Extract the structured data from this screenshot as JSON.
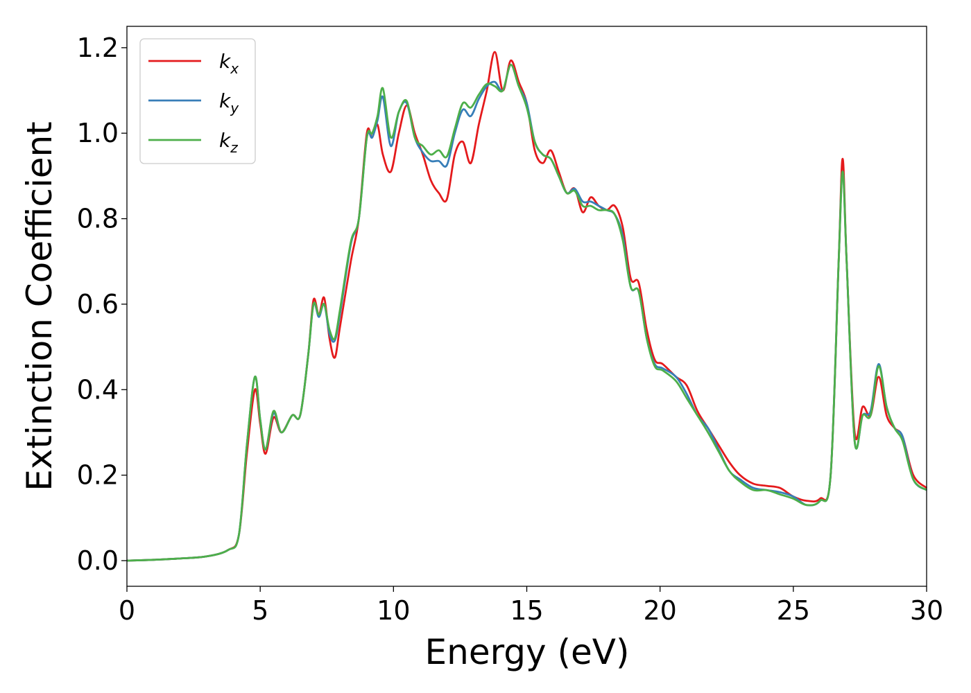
{
  "chart_data": {
    "type": "line",
    "title": "",
    "xlabel": "Energy (eV)",
    "ylabel": "Extinction Coefficient",
    "xlim": [
      0,
      30
    ],
    "ylim": [
      -0.06,
      1.25
    ],
    "xticks": [
      0,
      5,
      10,
      15,
      20,
      25,
      30
    ],
    "xtick_labels": [
      "0",
      "5",
      "10",
      "15",
      "20",
      "25",
      "30"
    ],
    "yticks": [
      0.0,
      0.2,
      0.4,
      0.6,
      0.8,
      1.0,
      1.2
    ],
    "ytick_labels": [
      "0.0",
      "0.2",
      "0.4",
      "0.6",
      "0.8",
      "1.0",
      "1.2"
    ],
    "grid": false,
    "legend_position": "top-left",
    "series": [
      {
        "name": "k_x",
        "sub": "x",
        "color": "#e41a1c",
        "points": [
          [
            0,
            0.0
          ],
          [
            1,
            0.002
          ],
          [
            2,
            0.005
          ],
          [
            3,
            0.01
          ],
          [
            3.8,
            0.025
          ],
          [
            4.2,
            0.06
          ],
          [
            4.5,
            0.25
          ],
          [
            4.8,
            0.4
          ],
          [
            5.0,
            0.32
          ],
          [
            5.2,
            0.25
          ],
          [
            5.5,
            0.335
          ],
          [
            5.8,
            0.3
          ],
          [
            6.2,
            0.34
          ],
          [
            6.5,
            0.34
          ],
          [
            6.8,
            0.48
          ],
          [
            7.0,
            0.61
          ],
          [
            7.2,
            0.575
          ],
          [
            7.4,
            0.615
          ],
          [
            7.6,
            0.52
          ],
          [
            7.8,
            0.475
          ],
          [
            8.0,
            0.55
          ],
          [
            8.4,
            0.7
          ],
          [
            8.7,
            0.8
          ],
          [
            9.0,
            1.0
          ],
          [
            9.2,
            0.99
          ],
          [
            9.4,
            1.02
          ],
          [
            9.6,
            0.95
          ],
          [
            9.9,
            0.91
          ],
          [
            10.2,
            1.0
          ],
          [
            10.5,
            1.065
          ],
          [
            10.8,
            1.0
          ],
          [
            11.1,
            0.95
          ],
          [
            11.4,
            0.89
          ],
          [
            11.7,
            0.86
          ],
          [
            12.0,
            0.845
          ],
          [
            12.3,
            0.95
          ],
          [
            12.6,
            0.98
          ],
          [
            12.9,
            0.93
          ],
          [
            13.2,
            1.02
          ],
          [
            13.5,
            1.1
          ],
          [
            13.8,
            1.19
          ],
          [
            14.1,
            1.1
          ],
          [
            14.4,
            1.17
          ],
          [
            14.7,
            1.12
          ],
          [
            15.0,
            1.07
          ],
          [
            15.3,
            0.96
          ],
          [
            15.6,
            0.93
          ],
          [
            15.9,
            0.96
          ],
          [
            16.2,
            0.91
          ],
          [
            16.5,
            0.86
          ],
          [
            16.8,
            0.87
          ],
          [
            17.1,
            0.815
          ],
          [
            17.4,
            0.85
          ],
          [
            17.7,
            0.83
          ],
          [
            18.0,
            0.82
          ],
          [
            18.3,
            0.83
          ],
          [
            18.6,
            0.78
          ],
          [
            18.9,
            0.66
          ],
          [
            19.2,
            0.65
          ],
          [
            19.5,
            0.54
          ],
          [
            19.8,
            0.47
          ],
          [
            20.1,
            0.46
          ],
          [
            20.6,
            0.43
          ],
          [
            21.0,
            0.41
          ],
          [
            21.4,
            0.35
          ],
          [
            21.8,
            0.31
          ],
          [
            22.2,
            0.27
          ],
          [
            22.6,
            0.23
          ],
          [
            23.0,
            0.2
          ],
          [
            23.5,
            0.18
          ],
          [
            24.0,
            0.175
          ],
          [
            24.5,
            0.17
          ],
          [
            25.0,
            0.15
          ],
          [
            25.5,
            0.14
          ],
          [
            26.0,
            0.145
          ],
          [
            26.4,
            0.2
          ],
          [
            26.7,
            0.7
          ],
          [
            26.85,
            0.94
          ],
          [
            27.0,
            0.7
          ],
          [
            27.3,
            0.3
          ],
          [
            27.6,
            0.36
          ],
          [
            27.9,
            0.34
          ],
          [
            28.2,
            0.43
          ],
          [
            28.5,
            0.34
          ],
          [
            28.8,
            0.31
          ],
          [
            29.1,
            0.29
          ],
          [
            29.5,
            0.2
          ],
          [
            30.0,
            0.17
          ]
        ]
      },
      {
        "name": "k_y",
        "sub": "y",
        "color": "#377eb8",
        "points": [
          [
            0,
            0.0
          ],
          [
            1,
            0.002
          ],
          [
            2,
            0.005
          ],
          [
            3,
            0.01
          ],
          [
            3.8,
            0.025
          ],
          [
            4.2,
            0.06
          ],
          [
            4.5,
            0.27
          ],
          [
            4.8,
            0.43
          ],
          [
            5.0,
            0.33
          ],
          [
            5.2,
            0.26
          ],
          [
            5.5,
            0.345
          ],
          [
            5.8,
            0.3
          ],
          [
            6.2,
            0.34
          ],
          [
            6.5,
            0.34
          ],
          [
            6.8,
            0.48
          ],
          [
            7.0,
            0.6
          ],
          [
            7.2,
            0.57
          ],
          [
            7.4,
            0.6
          ],
          [
            7.6,
            0.53
          ],
          [
            7.8,
            0.515
          ],
          [
            8.0,
            0.58
          ],
          [
            8.4,
            0.74
          ],
          [
            8.7,
            0.8
          ],
          [
            9.0,
            0.99
          ],
          [
            9.2,
            0.99
          ],
          [
            9.4,
            1.03
          ],
          [
            9.6,
            1.085
          ],
          [
            9.9,
            0.97
          ],
          [
            10.2,
            1.05
          ],
          [
            10.5,
            1.07
          ],
          [
            10.8,
            0.99
          ],
          [
            11.1,
            0.955
          ],
          [
            11.4,
            0.935
          ],
          [
            11.7,
            0.935
          ],
          [
            12.0,
            0.925
          ],
          [
            12.3,
            1.0
          ],
          [
            12.6,
            1.055
          ],
          [
            12.9,
            1.04
          ],
          [
            13.2,
            1.08
          ],
          [
            13.5,
            1.11
          ],
          [
            13.8,
            1.12
          ],
          [
            14.1,
            1.1
          ],
          [
            14.4,
            1.16
          ],
          [
            14.7,
            1.11
          ],
          [
            15.0,
            1.07
          ],
          [
            15.3,
            0.98
          ],
          [
            15.6,
            0.95
          ],
          [
            15.9,
            0.94
          ],
          [
            16.2,
            0.9
          ],
          [
            16.5,
            0.86
          ],
          [
            16.8,
            0.87
          ],
          [
            17.1,
            0.84
          ],
          [
            17.4,
            0.84
          ],
          [
            17.7,
            0.83
          ],
          [
            18.0,
            0.82
          ],
          [
            18.3,
            0.81
          ],
          [
            18.6,
            0.76
          ],
          [
            18.9,
            0.64
          ],
          [
            19.2,
            0.63
          ],
          [
            19.5,
            0.52
          ],
          [
            19.8,
            0.46
          ],
          [
            20.1,
            0.45
          ],
          [
            20.6,
            0.43
          ],
          [
            21.0,
            0.39
          ],
          [
            21.4,
            0.34
          ],
          [
            21.8,
            0.31
          ],
          [
            22.2,
            0.26
          ],
          [
            22.6,
            0.21
          ],
          [
            23.0,
            0.19
          ],
          [
            23.5,
            0.17
          ],
          [
            24.0,
            0.165
          ],
          [
            24.5,
            0.16
          ],
          [
            25.0,
            0.15
          ],
          [
            25.5,
            0.13
          ],
          [
            26.0,
            0.14
          ],
          [
            26.4,
            0.2
          ],
          [
            26.7,
            0.7
          ],
          [
            26.85,
            0.91
          ],
          [
            27.0,
            0.7
          ],
          [
            27.3,
            0.28
          ],
          [
            27.6,
            0.34
          ],
          [
            27.9,
            0.35
          ],
          [
            28.2,
            0.46
          ],
          [
            28.5,
            0.36
          ],
          [
            28.8,
            0.31
          ],
          [
            29.1,
            0.29
          ],
          [
            29.5,
            0.19
          ],
          [
            30.0,
            0.165
          ]
        ]
      },
      {
        "name": "k_z",
        "sub": "z",
        "color": "#4daf4a",
        "points": [
          [
            0,
            0.0
          ],
          [
            1,
            0.002
          ],
          [
            2,
            0.005
          ],
          [
            3,
            0.01
          ],
          [
            3.8,
            0.025
          ],
          [
            4.2,
            0.06
          ],
          [
            4.5,
            0.27
          ],
          [
            4.8,
            0.43
          ],
          [
            5.0,
            0.33
          ],
          [
            5.2,
            0.26
          ],
          [
            5.5,
            0.35
          ],
          [
            5.8,
            0.3
          ],
          [
            6.2,
            0.34
          ],
          [
            6.5,
            0.34
          ],
          [
            6.8,
            0.48
          ],
          [
            7.0,
            0.6
          ],
          [
            7.2,
            0.575
          ],
          [
            7.4,
            0.6
          ],
          [
            7.6,
            0.54
          ],
          [
            7.8,
            0.52
          ],
          [
            8.0,
            0.59
          ],
          [
            8.4,
            0.745
          ],
          [
            8.7,
            0.8
          ],
          [
            9.0,
            0.99
          ],
          [
            9.2,
            1.0
          ],
          [
            9.4,
            1.04
          ],
          [
            9.6,
            1.105
          ],
          [
            9.9,
            0.99
          ],
          [
            10.2,
            1.05
          ],
          [
            10.5,
            1.075
          ],
          [
            10.8,
            0.99
          ],
          [
            11.1,
            0.97
          ],
          [
            11.4,
            0.95
          ],
          [
            11.7,
            0.96
          ],
          [
            12.0,
            0.945
          ],
          [
            12.3,
            1.01
          ],
          [
            12.6,
            1.07
          ],
          [
            12.9,
            1.06
          ],
          [
            13.2,
            1.09
          ],
          [
            13.5,
            1.115
          ],
          [
            13.8,
            1.11
          ],
          [
            14.1,
            1.1
          ],
          [
            14.4,
            1.16
          ],
          [
            14.7,
            1.11
          ],
          [
            15.0,
            1.06
          ],
          [
            15.3,
            0.98
          ],
          [
            15.6,
            0.95
          ],
          [
            15.9,
            0.94
          ],
          [
            16.2,
            0.9
          ],
          [
            16.5,
            0.86
          ],
          [
            16.8,
            0.865
          ],
          [
            17.1,
            0.83
          ],
          [
            17.4,
            0.83
          ],
          [
            17.7,
            0.82
          ],
          [
            18.0,
            0.82
          ],
          [
            18.3,
            0.81
          ],
          [
            18.6,
            0.75
          ],
          [
            18.9,
            0.64
          ],
          [
            19.2,
            0.63
          ],
          [
            19.5,
            0.52
          ],
          [
            19.8,
            0.455
          ],
          [
            20.1,
            0.445
          ],
          [
            20.6,
            0.42
          ],
          [
            21.0,
            0.38
          ],
          [
            21.4,
            0.34
          ],
          [
            21.8,
            0.3
          ],
          [
            22.2,
            0.255
          ],
          [
            22.6,
            0.21
          ],
          [
            23.0,
            0.185
          ],
          [
            23.5,
            0.165
          ],
          [
            24.0,
            0.165
          ],
          [
            24.5,
            0.155
          ],
          [
            25.0,
            0.145
          ],
          [
            25.5,
            0.13
          ],
          [
            26.0,
            0.14
          ],
          [
            26.4,
            0.2
          ],
          [
            26.7,
            0.7
          ],
          [
            26.85,
            0.91
          ],
          [
            27.0,
            0.7
          ],
          [
            27.3,
            0.28
          ],
          [
            27.6,
            0.34
          ],
          [
            27.9,
            0.34
          ],
          [
            28.2,
            0.455
          ],
          [
            28.5,
            0.36
          ],
          [
            28.8,
            0.31
          ],
          [
            29.1,
            0.28
          ],
          [
            29.5,
            0.19
          ],
          [
            30.0,
            0.165
          ]
        ]
      }
    ]
  }
}
